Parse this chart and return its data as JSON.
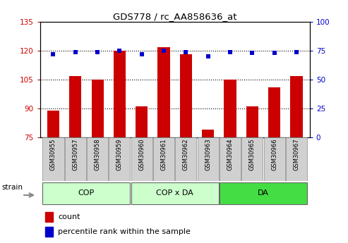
{
  "title": "GDS778 / rc_AA858636_at",
  "samples": [
    "GSM30955",
    "GSM30957",
    "GSM30958",
    "GSM30959",
    "GSM30960",
    "GSM30961",
    "GSM30962",
    "GSM30963",
    "GSM30964",
    "GSM30965",
    "GSM30966",
    "GSM30967"
  ],
  "count_values": [
    89,
    107,
    105,
    120,
    91,
    122,
    118,
    79,
    105,
    91,
    101,
    107
  ],
  "percentile_values": [
    72,
    74,
    74,
    75,
    72,
    75,
    74,
    70,
    74,
    73,
    73,
    74
  ],
  "ylim_left": [
    75,
    135
  ],
  "ylim_right": [
    0,
    100
  ],
  "yticks_left": [
    75,
    90,
    105,
    120,
    135
  ],
  "yticks_right": [
    0,
    25,
    50,
    75,
    100
  ],
  "groups": [
    {
      "label": "COP",
      "start": 0,
      "end": 3,
      "color": "#ccffcc"
    },
    {
      "label": "COP x DA",
      "start": 4,
      "end": 7,
      "color": "#ccffcc"
    },
    {
      "label": "DA",
      "start": 8,
      "end": 11,
      "color": "#44dd44"
    }
  ],
  "bar_color": "#cc0000",
  "dot_color": "#0000cc",
  "bar_width": 0.55,
  "bg_color": "#ffffff",
  "plot_bg": "#ffffff",
  "sample_box_color": "#d0d0d0",
  "sample_box_edge": "#888888",
  "strain_label": "strain",
  "legend_count": "count",
  "legend_percentile": "percentile rank within the sample",
  "left_tick_color": "#cc0000",
  "right_tick_color": "#0000cc",
  "gridlines_at": [
    90,
    105,
    120
  ]
}
